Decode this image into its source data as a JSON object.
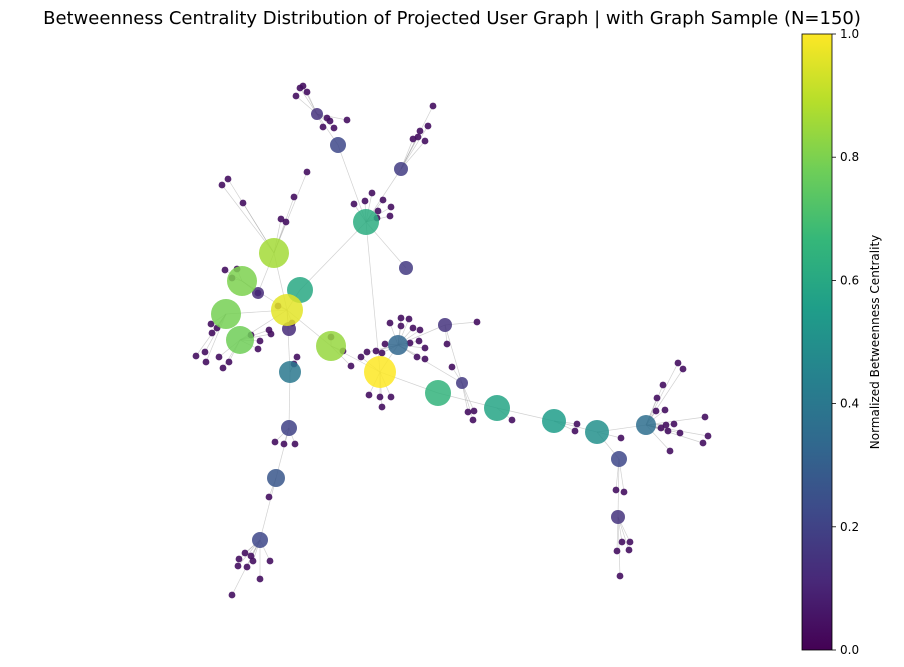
{
  "title": "Betweenness Centrality Distribution of Projected User Graph | with Graph Sample (N=150)",
  "chart_data": {
    "type": "network",
    "node_count": 150,
    "colormap": "viridis",
    "colorbar": {
      "label": "Normalized Betweenness Centrality",
      "range": [
        0.0,
        1.0
      ],
      "ticks": [
        "0.0",
        "0.2",
        "0.4",
        "0.6",
        "0.8",
        "1.0"
      ],
      "colors": [
        "#440154",
        "#482878",
        "#3e4989",
        "#31688e",
        "#26828e",
        "#1f9e89",
        "#35b779",
        "#6ece58",
        "#b5de2b",
        "#fde725"
      ]
    },
    "hubs": [
      {
        "id": "h1",
        "centrality": 1.0
      },
      {
        "id": "h2",
        "centrality": 0.96
      },
      {
        "id": "h3",
        "centrality": 0.86
      },
      {
        "id": "h4",
        "centrality": 0.84
      },
      {
        "id": "h5",
        "centrality": 0.8
      },
      {
        "id": "h6",
        "centrality": 0.79
      },
      {
        "id": "h7",
        "centrality": 0.78
      },
      {
        "id": "h8",
        "centrality": 0.65
      },
      {
        "id": "h9",
        "centrality": 0.62
      },
      {
        "id": "h10",
        "centrality": 0.6
      },
      {
        "id": "h11",
        "centrality": 0.58
      },
      {
        "id": "h12",
        "centrality": 0.55
      },
      {
        "id": "h13",
        "centrality": 0.5
      },
      {
        "id": "h14",
        "centrality": 0.4
      },
      {
        "id": "h15",
        "centrality": 0.36
      },
      {
        "id": "h16",
        "centrality": 0.33
      },
      {
        "id": "h17",
        "centrality": 0.27
      },
      {
        "id": "h18",
        "centrality": 0.22
      },
      {
        "id": "h19",
        "centrality": 0.22
      },
      {
        "id": "h20",
        "centrality": 0.22
      },
      {
        "id": "h21",
        "centrality": 0.2
      },
      {
        "id": "h22",
        "centrality": 0.18
      },
      {
        "id": "h23",
        "centrality": 0.17
      },
      {
        "id": "h24",
        "centrality": 0.17
      },
      {
        "id": "h25",
        "centrality": 0.15
      },
      {
        "id": "h26",
        "centrality": 0.15
      },
      {
        "id": "h27",
        "centrality": 0.14
      },
      {
        "id": "h28",
        "centrality": 0.12
      },
      {
        "id": "h29",
        "centrality": 0.12
      }
    ],
    "leaf_centrality": 0.0
  }
}
